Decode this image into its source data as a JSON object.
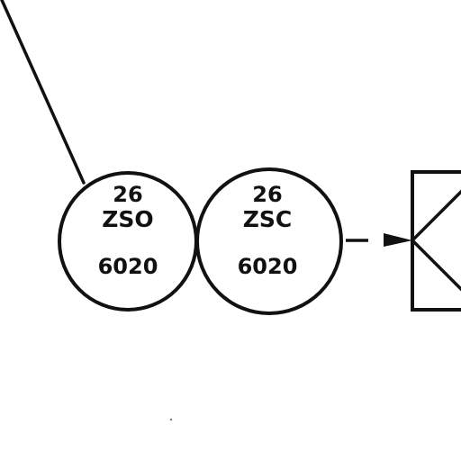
{
  "diagram": {
    "stroke_color": "#111111",
    "background_color": "#ffffff",
    "instruments": [
      {
        "number": "26",
        "tag": "ZSO",
        "loop": "6020"
      },
      {
        "number": "26",
        "tag": "ZSC",
        "loop": "6020"
      }
    ],
    "valve_symbol": "valve-body-icon"
  }
}
